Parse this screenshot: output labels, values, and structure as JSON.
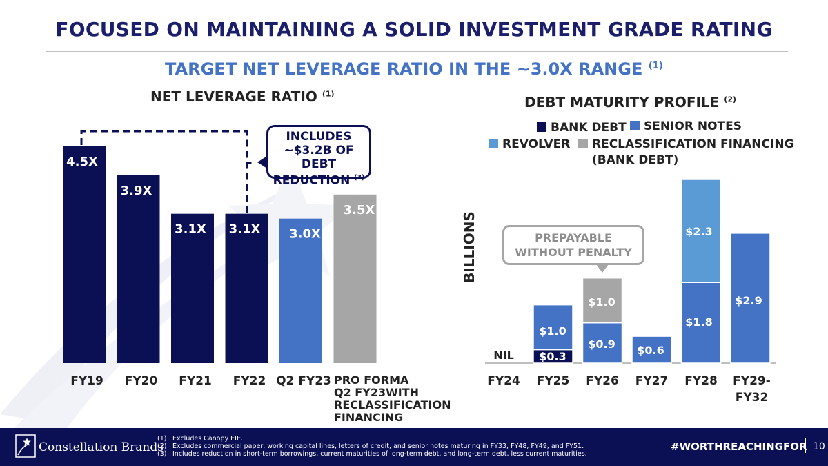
{
  "slide": {
    "title": "FOCUSED ON MAINTAINING A SOLID INVESTMENT GRADE RATING",
    "subtitle": "TARGET NET LEVERAGE RATIO IN THE ~3.0X RANGE",
    "subtitle_note": "(1)"
  },
  "leverage": {
    "title": "NET LEVERAGE RATIO",
    "title_note": "(1)",
    "callout": {
      "lines": [
        "INCLUDES",
        "~$3.2B OF DEBT",
        "REDUCTION"
      ],
      "note": "(3)"
    }
  },
  "debt": {
    "title": "DEBT MATURITY PROFILE",
    "title_note": "(2)",
    "ylabel": "BILLIONS",
    "nil_label": "NIL",
    "callout": [
      "PREPAYABLE",
      "WITHOUT PENALTY"
    ],
    "legend": [
      {
        "label": "BANK DEBT",
        "color": "#0b0f54"
      },
      {
        "label": "SENIOR NOTES",
        "color": "#4472c4"
      },
      {
        "label": "REVOLVER",
        "color": "#5b9bd5"
      },
      {
        "label": "RECLASSIFICATION FINANCING",
        "label2": "(BANK DEBT)",
        "color": "#a6a6a6"
      }
    ]
  },
  "chart_data": [
    {
      "type": "bar",
      "title": "NET LEVERAGE RATIO",
      "categories": [
        "FY19",
        "FY20",
        "FY21",
        "FY22",
        "Q2 FY23",
        "PRO FORMA Q2 FY23WITH RECLASSIFICATION FINANCING"
      ],
      "category_lines": [
        [
          "FY19"
        ],
        [
          "FY20"
        ],
        [
          "FY21"
        ],
        [
          "FY22"
        ],
        [
          "Q2 FY23"
        ],
        [
          "PRO FORMA",
          "Q2 FY23WITH",
          "RECLASSIFICATION",
          "FINANCING"
        ]
      ],
      "values": [
        4.5,
        3.9,
        3.1,
        3.1,
        3.0,
        3.5
      ],
      "value_labels": [
        "4.5X",
        "3.9X",
        "3.1X",
        "3.1X",
        "3.0X",
        "3.5X"
      ],
      "colors": [
        "#0b0f54",
        "#0b0f54",
        "#0b0f54",
        "#0b0f54",
        "#4472c4",
        "#a6a6a6"
      ],
      "ylim": [
        0,
        4.5
      ]
    },
    {
      "type": "bar",
      "stacked": true,
      "title": "DEBT MATURITY PROFILE",
      "ylabel": "BILLIONS",
      "categories": [
        "FY24",
        "FY25",
        "FY26",
        "FY27",
        "FY28",
        "FY29-FY32"
      ],
      "category_lines": [
        [
          "FY24"
        ],
        [
          "FY25"
        ],
        [
          "FY26"
        ],
        [
          "FY27"
        ],
        [
          "FY28"
        ],
        [
          "FY29-",
          "FY32"
        ]
      ],
      "series": [
        {
          "name": "BANK DEBT",
          "color": "#0b0f54",
          "values": [
            0,
            0.3,
            0,
            0,
            0,
            0
          ],
          "labels": [
            "",
            "$0.3",
            "",
            "",
            "",
            ""
          ]
        },
        {
          "name": "SENIOR NOTES",
          "color": "#4472c4",
          "values": [
            0,
            1.0,
            0.9,
            0.6,
            1.8,
            2.9
          ],
          "labels": [
            "",
            "$1.0",
            "$0.9",
            "$0.6",
            "$1.8",
            "$2.9"
          ]
        },
        {
          "name": "REVOLVER",
          "color": "#5b9bd5",
          "values": [
            0,
            0,
            0,
            0,
            2.3,
            0
          ],
          "labels": [
            "",
            "",
            "",
            "",
            "$2.3",
            ""
          ]
        },
        {
          "name": "RECLASSIFICATION FINANCING (BANK DEBT)",
          "color": "#a6a6a6",
          "values": [
            0,
            0,
            1.0,
            0,
            0,
            0
          ],
          "labels": [
            "",
            "",
            "$1.0",
            "",
            "",
            ""
          ]
        }
      ],
      "ylim": [
        0,
        4.1
      ]
    }
  ],
  "footer": {
    "brand": "Constellation Brands",
    "notes": [
      {
        "num": "(1)",
        "text": "Excludes Canopy EIE."
      },
      {
        "num": "(2)",
        "text": "Excludes commercial paper, working capital lines, letters of credit, and senior notes maturing in FY33, FY48, FY49, and FY51."
      },
      {
        "num": "(3)",
        "text": "Includes reduction in short-term borrowings, current maturities of long-term debt, and long-term debt, less current maturities."
      }
    ],
    "hashtag": "#WORTHREACHINGFOR",
    "page": "10"
  }
}
